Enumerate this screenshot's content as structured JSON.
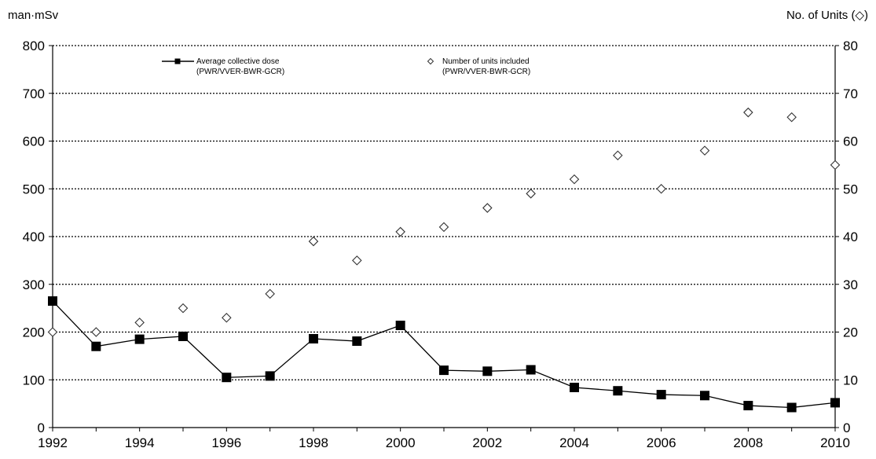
{
  "chart_data": {
    "type": "line",
    "left_axis_label": "man·mSv",
    "right_axis_label": "No. of Units (◇)",
    "x": [
      1992,
      1993,
      1994,
      1995,
      1996,
      1997,
      1998,
      1999,
      2000,
      2001,
      2002,
      2003,
      2004,
      2005,
      2006,
      2007,
      2008,
      2009,
      2010
    ],
    "x_tick_labels": [
      "1992",
      "1994",
      "1996",
      "1998",
      "2000",
      "2002",
      "2004",
      "2006",
      "2008",
      "2010"
    ],
    "xlim": [
      1992,
      2010
    ],
    "y_left": {
      "ylim": [
        0,
        800
      ],
      "ticks": [
        "0",
        "100",
        "200",
        "300",
        "400",
        "500",
        "600",
        "700",
        "800"
      ]
    },
    "y_right": {
      "ylim": [
        0,
        80
      ],
      "ticks": [
        "0",
        "10",
        "20",
        "30",
        "40",
        "50",
        "60",
        "70",
        "80"
      ]
    },
    "grid": "horizontal dotted",
    "legend_placement": "top-left",
    "series": [
      {
        "name": "Average collective dose",
        "name_line2": "(PWR/VVER-BWR-GCR)",
        "axis": "left",
        "style": "line-square",
        "values": [
          265,
          170,
          185,
          191,
          105,
          108,
          186,
          181,
          214,
          120,
          118,
          121,
          84,
          77,
          69,
          67,
          46,
          42,
          52
        ]
      },
      {
        "name": "Number of units included",
        "name_line2": "(PWR/VVER-BWR-GCR)",
        "axis": "right",
        "style": "diamond-markers",
        "values": [
          20,
          20,
          22,
          25,
          23,
          28,
          39,
          35,
          41,
          42,
          46,
          49,
          52,
          57,
          50,
          58,
          66,
          65,
          55
        ]
      }
    ],
    "colors": {
      "series_line": "#000000",
      "diamond_stroke": "#333333",
      "grid": "#000000"
    }
  }
}
